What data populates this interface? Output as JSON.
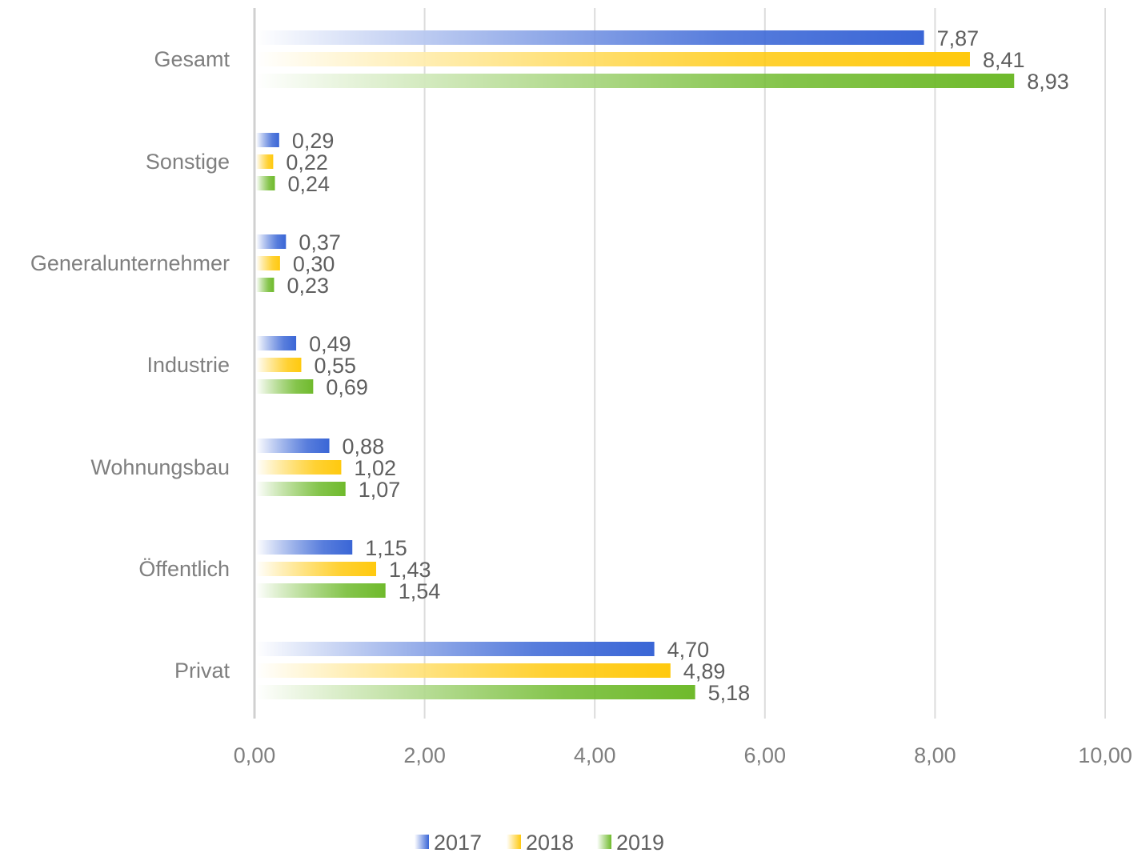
{
  "chart_data": {
    "type": "bar",
    "orientation": "horizontal",
    "categories": [
      "Gesamt",
      "Sonstige",
      "Generalunternehmer",
      "Industrie",
      "Wohnungsbau",
      "Öffentlich",
      "Privat"
    ],
    "series": [
      {
        "name": "2017",
        "values": [
          7.87,
          0.29,
          0.37,
          0.49,
          0.88,
          1.15,
          4.7
        ],
        "labels": [
          "7,87",
          "0,29",
          "0,37",
          "0,49",
          "0,88",
          "1,15",
          "4,70"
        ],
        "color": "#3a66d6"
      },
      {
        "name": "2018",
        "values": [
          8.41,
          0.22,
          0.3,
          0.55,
          1.02,
          1.43,
          4.89
        ],
        "labels": [
          "8,41",
          "0,22",
          "0,30",
          "0,55",
          "1,02",
          "1,43",
          "4,89"
        ],
        "color": "#ffc90e"
      },
      {
        "name": "2019",
        "values": [
          8.93,
          0.24,
          0.23,
          0.69,
          1.07,
          1.54,
          5.18
        ],
        "labels": [
          "8,93",
          "0,24",
          "0,23",
          "0,69",
          "1,07",
          "1,54",
          "5,18"
        ],
        "color": "#6fba2c"
      }
    ],
    "xlim": [
      0,
      10
    ],
    "xticks": [
      "0,00",
      "2,00",
      "4,00",
      "6,00",
      "8,00",
      "10,00"
    ],
    "grid": true,
    "legend_position": "bottom",
    "bar_style": "gradient fade from white on the left"
  }
}
